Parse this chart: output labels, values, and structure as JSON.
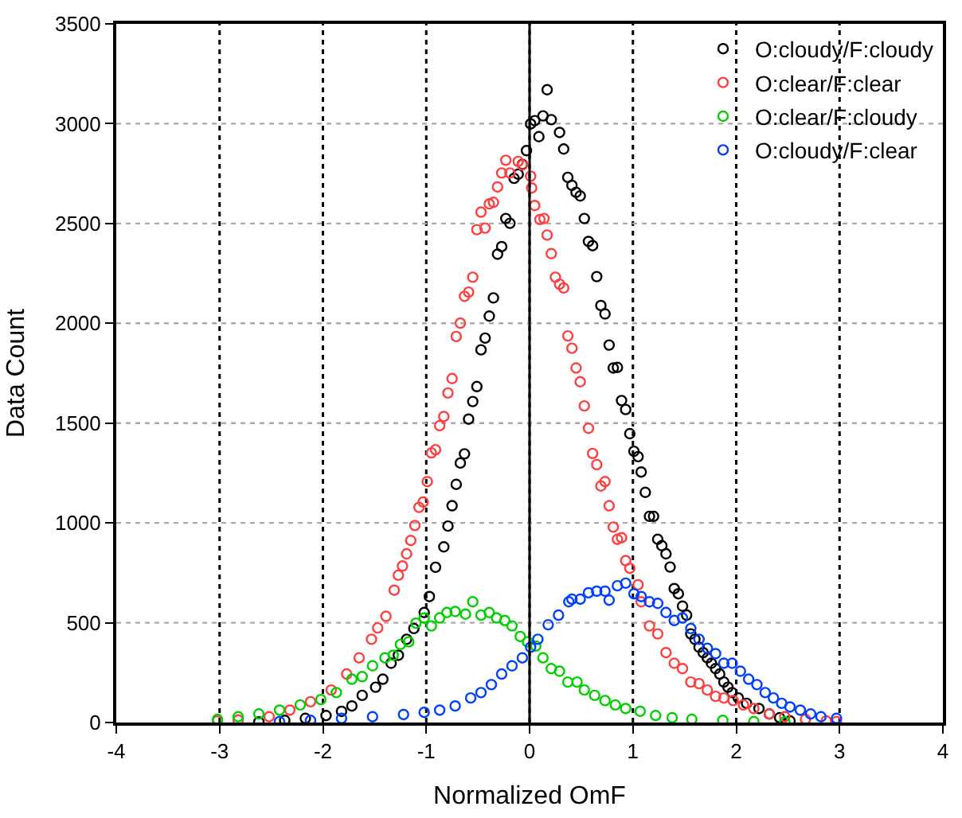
{
  "chart_data": {
    "type": "scatter",
    "xlabel": "Normalized OmF",
    "ylabel": "Data Count",
    "xlim": [
      -4,
      4
    ],
    "xticks": [
      -4,
      -3,
      -2,
      -1,
      0,
      1,
      2,
      3,
      4
    ],
    "ylim": [
      0,
      3500
    ],
    "yticks": [
      0,
      500,
      1000,
      1500,
      2000,
      2500,
      3000,
      3500
    ],
    "grid": true,
    "legend": "top right",
    "marker": "circle",
    "ref_lines": [
      {
        "axis": "x",
        "value": 0,
        "color": "#000000",
        "line_style": "solid"
      }
    ],
    "series": [
      {
        "name": "O:cloudy/F:cloudy",
        "color": "#000000",
        "x": [
          -2.62,
          -2.37,
          -2.17,
          -1.97,
          -1.82,
          -1.72,
          -1.62,
          -1.49,
          -1.42,
          -1.34,
          -1.27,
          -1.19,
          -1.12,
          -1.02,
          -0.97,
          -0.91,
          -0.83,
          -0.79,
          -0.75,
          -0.71,
          -0.67,
          -0.63,
          -0.59,
          -0.55,
          -0.51,
          -0.47,
          -0.43,
          -0.39,
          -0.35,
          -0.31,
          -0.27,
          -0.23,
          -0.19,
          -0.15,
          -0.11,
          -0.07,
          -0.03,
          0.01,
          0.05,
          0.09,
          0.13,
          0.17,
          0.21,
          0.29,
          0.33,
          0.37,
          0.41,
          0.45,
          0.49,
          0.53,
          0.57,
          0.61,
          0.65,
          0.69,
          0.73,
          0.77,
          0.81,
          0.85,
          0.89,
          0.93,
          0.97,
          1.01,
          1.05,
          1.08,
          1.12,
          1.16,
          1.2,
          1.24,
          1.28,
          1.32,
          1.36,
          1.4,
          1.44,
          1.48,
          1.52,
          1.56,
          1.6,
          1.64,
          1.68,
          1.72,
          1.76,
          1.8,
          1.84,
          1.88,
          1.92,
          1.96,
          2.02,
          2.1,
          2.22,
          2.32,
          2.42,
          2.52
        ],
        "values": [
          3,
          11,
          21,
          35,
          56,
          83,
          136,
          177,
          217,
          297,
          337,
          417,
          471,
          551,
          631,
          778,
          880,
          984,
          1086,
          1193,
          1300,
          1346,
          1520,
          1608,
          1683,
          1867,
          1926,
          2036,
          2127,
          2346,
          2384,
          2525,
          2501,
          2726,
          2747,
          2796,
          2865,
          2999,
          3015,
          2935,
          3039,
          3170,
          3020,
          2956,
          2873,
          2731,
          2691,
          2656,
          2638,
          2525,
          2410,
          2389,
          2234,
          2089,
          2047,
          1891,
          1776,
          1779,
          1613,
          1568,
          1447,
          1359,
          1332,
          1255,
          1153,
          1033,
          1033,
          918,
          886,
          845,
          779,
          671,
          645,
          583,
          538,
          444,
          417,
          377,
          350,
          324,
          297,
          270,
          243,
          203,
          177,
          150,
          123,
          96,
          70,
          43,
          24,
          8
        ]
      },
      {
        "name": "O:clear/F:clear",
        "color": "#ff4040",
        "x": [
          -3.02,
          -2.82,
          -2.52,
          -2.32,
          -2.12,
          -1.92,
          -1.77,
          -1.65,
          -1.53,
          -1.47,
          -1.39,
          -1.31,
          -1.27,
          -1.23,
          -1.19,
          -1.15,
          -1.11,
          -1.07,
          -1.03,
          -0.99,
          -0.95,
          -0.91,
          -0.87,
          -0.83,
          -0.79,
          -0.75,
          -0.71,
          -0.67,
          -0.63,
          -0.59,
          -0.55,
          -0.51,
          -0.47,
          -0.43,
          -0.39,
          -0.35,
          -0.31,
          -0.27,
          -0.23,
          -0.19,
          -0.11,
          -0.07,
          0.01,
          0.02,
          0.05,
          0.1,
          0.14,
          0.17,
          0.21,
          0.25,
          0.29,
          0.33,
          0.37,
          0.41,
          0.45,
          0.49,
          0.53,
          0.57,
          0.61,
          0.65,
          0.69,
          0.73,
          0.77,
          0.81,
          0.85,
          0.89,
          0.93,
          0.97,
          1.05,
          1.08,
          1.16,
          1.24,
          1.32,
          1.4,
          1.48,
          1.56,
          1.64,
          1.72,
          1.8,
          1.88,
          1.97,
          2.07,
          2.17,
          2.32,
          2.47,
          2.67,
          2.87,
          2.97
        ],
        "values": [
          8,
          13,
          29,
          62,
          104,
          163,
          243,
          324,
          417,
          474,
          532,
          663,
          738,
          784,
          845,
          912,
          987,
          1078,
          1105,
          1207,
          1351,
          1367,
          1487,
          1533,
          1651,
          1723,
          1934,
          2001,
          2135,
          2156,
          2231,
          2469,
          2557,
          2477,
          2598,
          2606,
          2683,
          2753,
          2817,
          2753,
          2811,
          2793,
          2737,
          2678,
          2590,
          2520,
          2525,
          2442,
          2349,
          2231,
          2196,
          2177,
          1937,
          1875,
          1776,
          1707,
          1586,
          1474,
          1348,
          1292,
          1185,
          1207,
          1086,
          979,
          918,
          926,
          811,
          773,
          690,
          605,
          484,
          444,
          350,
          297,
          270,
          203,
          195,
          163,
          131,
          123,
          110,
          88,
          70,
          43,
          29,
          16,
          8,
          5
        ]
      },
      {
        "name": "O:clear/F:cloudy",
        "color": "#00d000",
        "x": [
          -3.02,
          -2.82,
          -2.62,
          -2.42,
          -2.22,
          -2.02,
          -1.87,
          -1.72,
          -1.62,
          -1.52,
          -1.4,
          -1.32,
          -1.25,
          -1.17,
          -1.1,
          -1.02,
          -0.95,
          -0.87,
          -0.8,
          -0.72,
          -0.62,
          -0.55,
          -0.47,
          -0.39,
          -0.32,
          -0.24,
          -0.17,
          -0.09,
          -0.02,
          0.06,
          0.13,
          0.21,
          0.29,
          0.37,
          0.46,
          0.53,
          0.63,
          0.73,
          0.83,
          0.93,
          1.07,
          1.22,
          1.38,
          1.57,
          1.87,
          2.17,
          2.47
        ],
        "values": [
          16,
          29,
          43,
          62,
          88,
          115,
          150,
          217,
          230,
          284,
          324,
          337,
          391,
          404,
          498,
          524,
          484,
          524,
          551,
          556,
          543,
          605,
          538,
          551,
          524,
          511,
          484,
          431,
          404,
          383,
          324,
          270,
          257,
          203,
          203,
          163,
          136,
          110,
          88,
          70,
          56,
          35,
          24,
          16,
          11,
          5,
          3
        ]
      },
      {
        "name": "O:cloudy/F:clear",
        "color": "#0040ff",
        "x": [
          -2.42,
          -2.12,
          -1.82,
          -1.52,
          -1.22,
          -1.02,
          -0.87,
          -0.72,
          -0.57,
          -0.47,
          -0.37,
          -0.27,
          -0.17,
          -0.07,
          0.01,
          0.08,
          0.18,
          0.28,
          0.38,
          0.41,
          0.49,
          0.57,
          0.65,
          0.73,
          0.77,
          0.85,
          0.93,
          1.01,
          1.08,
          1.16,
          1.24,
          1.32,
          1.4,
          1.48,
          1.56,
          1.64,
          1.72,
          1.8,
          1.88,
          1.96,
          2.04,
          2.12,
          2.2,
          2.28,
          2.36,
          2.44,
          2.52,
          2.62,
          2.72,
          2.82,
          2.97
        ],
        "values": [
          5,
          11,
          21,
          29,
          40,
          51,
          62,
          83,
          123,
          150,
          190,
          243,
          284,
          324,
          377,
          417,
          490,
          538,
          605,
          618,
          618,
          650,
          658,
          658,
          613,
          685,
          698,
          645,
          631,
          605,
          597,
          551,
          511,
          524,
          471,
          417,
          372,
          345,
          297,
          297,
          257,
          217,
          190,
          150,
          123,
          96,
          78,
          62,
          43,
          29,
          21
        ]
      }
    ]
  }
}
